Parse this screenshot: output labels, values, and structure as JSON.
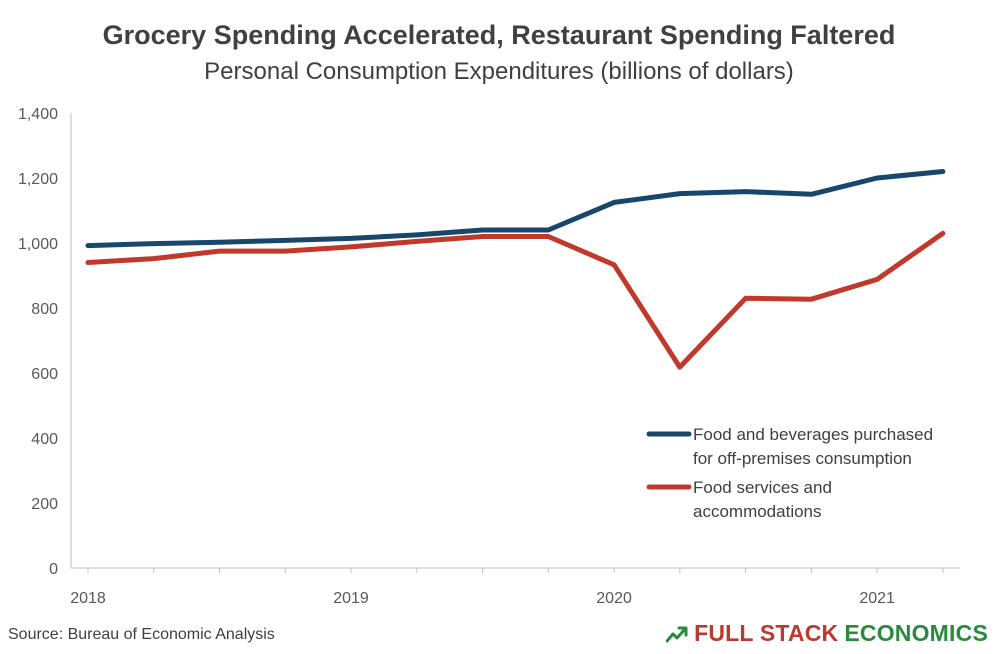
{
  "title": "Grocery Spending Accelerated, Restaurant Spending Faltered",
  "subtitle": "Personal Consumption Expenditures (billions of dollars)",
  "source": "Source: Bureau of Economic Analysis",
  "logo": {
    "part1": "FULL STACK",
    "part2": "ECONOMICS",
    "icon": "trend-arrow-icon",
    "colors": {
      "part1": "#b93a2e",
      "part2": "#2a8a3c"
    }
  },
  "chart_data": {
    "type": "line",
    "x": [
      "2018 Q1",
      "2018 Q2",
      "2018 Q3",
      "2018 Q4",
      "2019 Q1",
      "2019 Q2",
      "2019 Q3",
      "2019 Q4",
      "2020 Q1",
      "2020 Q2",
      "2020 Q3",
      "2020 Q4",
      "2021 Q1",
      "2021 Q2"
    ],
    "xticks": [
      "2018",
      "2019",
      "2020",
      "2021"
    ],
    "yticks": [
      "0",
      "200",
      "400",
      "600",
      "800",
      "1,000",
      "1,200",
      "1,400"
    ],
    "ylim": [
      0,
      1400
    ],
    "grid": false,
    "legend_position": "right",
    "series": [
      {
        "name": "Food and beverages purchased for off-premises consumption",
        "legend_lines": [
          "Food and beverages purchased",
          "for off-premises consumption"
        ],
        "color": "#17476b",
        "values": [
          992,
          998,
          1002,
          1008,
          1014,
          1025,
          1040,
          1040,
          1125,
          1152,
          1158,
          1150,
          1200,
          1220
        ]
      },
      {
        "name": "Food services and accommodations",
        "legend_lines": [
          "Food services and",
          "accommodations"
        ],
        "color": "#c0392b",
        "values": [
          940,
          952,
          975,
          975,
          988,
          1005,
          1020,
          1020,
          933,
          618,
          830,
          827,
          888,
          1030
        ]
      }
    ]
  }
}
